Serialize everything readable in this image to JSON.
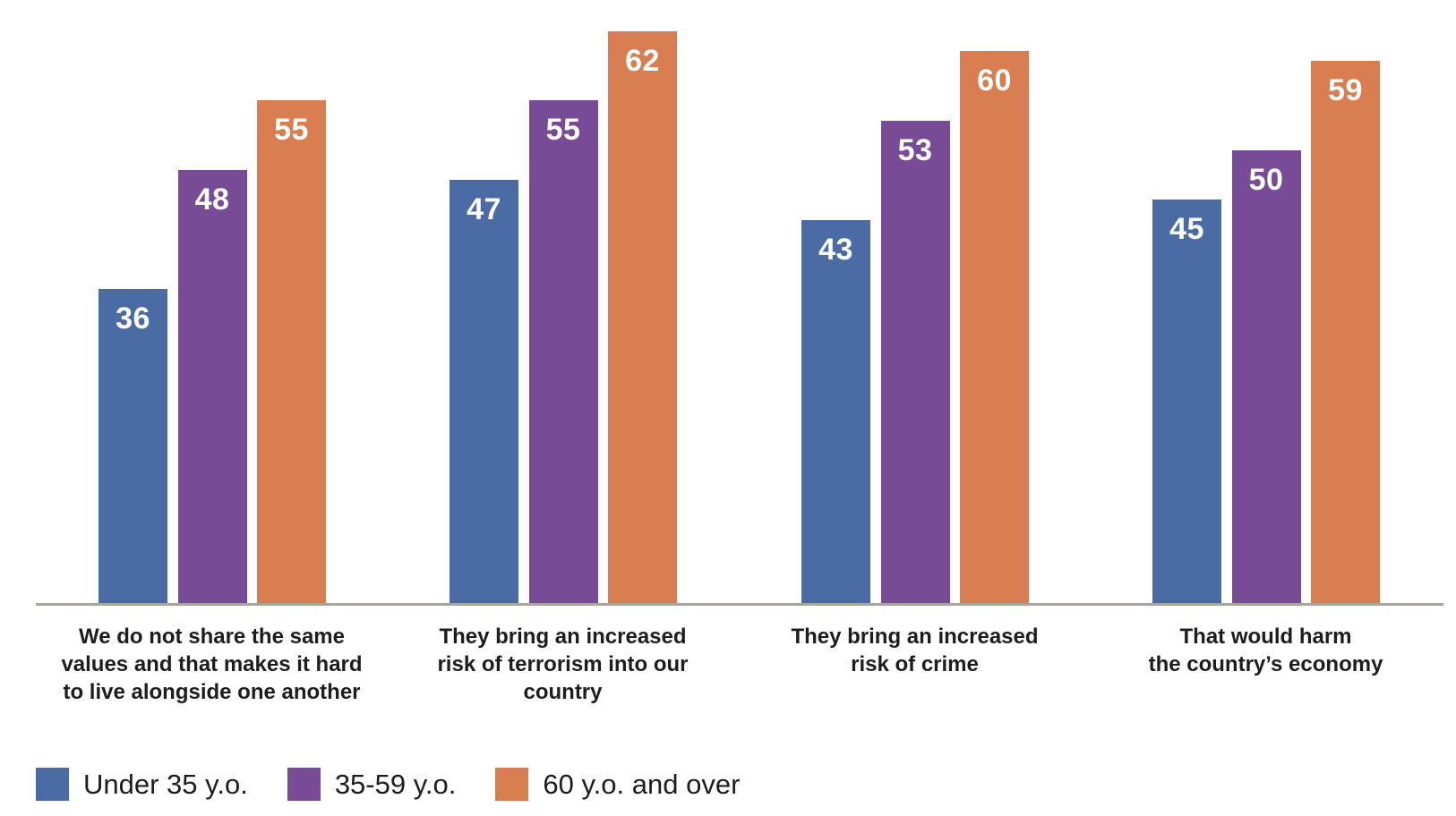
{
  "chart_data": {
    "type": "bar",
    "categories": [
      "We do not share the same\nvalues and that makes it hard\nto live alongside one another",
      "They bring an increased\nrisk of terrorism into our\ncountry",
      "They bring an increased\nrisk of crime",
      "That would harm\nthe country’s economy"
    ],
    "series": [
      {
        "name": "Under 35 y.o.",
        "color": "#4a6ba4",
        "values": [
          36,
          47,
          43,
          45
        ]
      },
      {
        "name": "35-59 y.o.",
        "color": "#784b96",
        "values": [
          48,
          55,
          53,
          50
        ]
      },
      {
        "name": "60 y.o. and over",
        "color": "#d87e51",
        "values": [
          55,
          62,
          60,
          59
        ]
      }
    ],
    "title": "",
    "xlabel": "",
    "ylabel": "",
    "value_labels_shown": true,
    "value_label_color": "#ffffff",
    "legend_position": "bottom-left",
    "grid": false,
    "y_axis_visible": false,
    "x_axis_line_color": "#a8a59f",
    "text_color": "#1d1d1d",
    "background_color": "#ffffff"
  }
}
